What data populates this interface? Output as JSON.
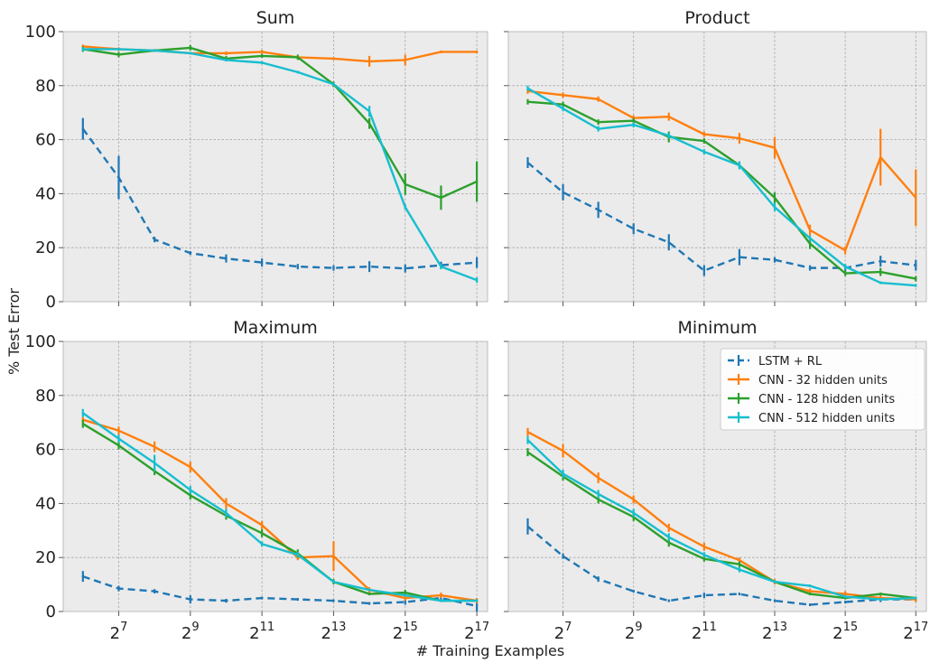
{
  "chart_data": {
    "type": "line",
    "xlabel": "# Training Examples",
    "ylabel": "% Test Error",
    "ylim": [
      0,
      100
    ],
    "yticks": [
      "0",
      "20",
      "40",
      "60",
      "80",
      "100"
    ],
    "x_exponents": [
      6,
      7,
      8,
      9,
      10,
      11,
      12,
      13,
      14,
      15,
      16,
      17
    ],
    "xticks": [
      {
        "base": "2",
        "exp": "7",
        "value": 7
      },
      {
        "base": "2",
        "exp": "9",
        "value": 9
      },
      {
        "base": "2",
        "exp": "11",
        "value": 11
      },
      {
        "base": "2",
        "exp": "13",
        "value": 13
      },
      {
        "base": "2",
        "exp": "15",
        "value": 15
      },
      {
        "base": "2",
        "exp": "17",
        "value": 17
      }
    ],
    "x_scale": "log2",
    "grid": true,
    "legend": {
      "placement": "top-right of Minimum panel",
      "entries": [
        {
          "label": "LSTM + RL",
          "color": "#1f77b4",
          "dashed": true
        },
        {
          "label": "CNN - 32 hidden units",
          "color": "#ff7f0e",
          "dashed": false
        },
        {
          "label": "CNN - 128 hidden units",
          "color": "#2ca02c",
          "dashed": false
        },
        {
          "label": "CNN - 512 hidden units",
          "color": "#17becf",
          "dashed": false
        }
      ]
    },
    "panels": [
      {
        "title": "Sum",
        "series": [
          {
            "name": "LSTM + RL",
            "values": [
              64,
              46,
              23,
              18,
              16,
              14.5,
              13,
              12.5,
              13,
              12.3,
              13.5,
              14.5
            ],
            "errors": [
              4,
              8,
              1,
              0.7,
              1.5,
              1.5,
              1,
              1,
              2,
              1.5,
              1.3,
              2
            ]
          },
          {
            "name": "CNN - 32 hidden units",
            "values": [
              94.5,
              93.5,
              93,
              92,
              92,
              92.5,
              90.5,
              90,
              89,
              89.5,
              92.5,
              92.5
            ],
            "errors": [
              0.7,
              0.7,
              0.5,
              0.5,
              0.7,
              0.7,
              0.5,
              0.5,
              2,
              2,
              0.5,
              0.5
            ]
          },
          {
            "name": "CNN - 128 hidden units",
            "values": [
              93.5,
              91.5,
              93,
              94,
              90,
              91,
              90.5,
              80.5,
              66,
              43.5,
              38.5,
              44.5
            ],
            "errors": [
              1,
              1,
              0.5,
              1,
              1,
              0.7,
              1,
              1,
              2,
              4,
              4.5,
              7.5
            ]
          },
          {
            "name": "CNN - 512 hidden units",
            "values": [
              93.5,
              93.5,
              93,
              92,
              89.5,
              88.5,
              85,
              80.5,
              70.5,
              35,
              13,
              8
            ],
            "errors": [
              0.7,
              0.5,
              0.5,
              0.5,
              0.5,
              0.5,
              0.5,
              0.5,
              2,
              1,
              1,
              1
            ]
          }
        ]
      },
      {
        "title": "Product",
        "series": [
          {
            "name": "LSTM + RL",
            "values": [
              51.5,
              40.5,
              34,
              27,
              22,
              11.5,
              16.5,
              15.5,
              12.5,
              12.5,
              15,
              13.5
            ],
            "errors": [
              2,
              3,
              3,
              2,
              3,
              2,
              3,
              1,
              1,
              1,
              2,
              2
            ]
          },
          {
            "name": "CNN - 32 hidden units",
            "values": [
              78,
              76.5,
              75,
              68,
              68.5,
              62,
              60.5,
              57,
              26.5,
              19,
              53.5,
              38.5
            ],
            "errors": [
              1,
              1,
              1,
              1,
              1.5,
              1,
              2,
              4,
              2,
              1.5,
              10.5,
              10.5
            ]
          },
          {
            "name": "CNN - 128 hidden units",
            "values": [
              74,
              73,
              66.5,
              67,
              61,
              59.5,
              50.5,
              38.5,
              21.5,
              10.5,
              11,
              8.5
            ],
            "errors": [
              1,
              1,
              1,
              1,
              2,
              1,
              1,
              2,
              2,
              1,
              1.5,
              1
            ]
          },
          {
            "name": "CNN - 512 hidden units",
            "values": [
              79,
              71.5,
              64,
              65.5,
              61.5,
              55.5,
              50.5,
              35,
              23.5,
              13,
              7,
              6
            ],
            "errors": [
              1,
              1,
              1,
              1,
              1,
              1,
              1.5,
              1.5,
              1,
              1,
              0.5,
              0.5
            ]
          }
        ]
      },
      {
        "title": "Maximum",
        "series": [
          {
            "name": "LSTM + RL",
            "values": [
              13,
              8.5,
              7.5,
              4.5,
              4,
              5,
              4.5,
              4,
              3,
              3.5,
              5,
              2
            ],
            "errors": [
              2,
              1,
              0.8,
              1.5,
              0.7,
              0.5,
              0.5,
              0.5,
              0.5,
              1,
              1,
              2
            ]
          },
          {
            "name": "CNN - 32 hidden units",
            "values": [
              71,
              67,
              61,
              53.5,
              40,
              32,
              20,
              20.5,
              8,
              5,
              6,
              4
            ],
            "errors": [
              1,
              1.5,
              2,
              2,
              2,
              1.5,
              1,
              5.5,
              1,
              1,
              1,
              1
            ]
          },
          {
            "name": "CNN - 128 hidden units",
            "values": [
              69.5,
              61.5,
              52,
              43,
              35.5,
              29,
              21.5,
              11,
              6.5,
              7,
              4,
              4
            ],
            "errors": [
              1.5,
              1.5,
              1.5,
              1.5,
              1.5,
              1.5,
              1.5,
              1,
              0.5,
              1,
              0.5,
              0.5
            ]
          },
          {
            "name": "CNN - 512 hidden units",
            "values": [
              73.5,
              64,
              55,
              45,
              36.5,
              25,
              21,
              11,
              8,
              6,
              4,
              4
            ],
            "errors": [
              1.5,
              1.5,
              3,
              1.5,
              1.5,
              1,
              1,
              0.5,
              0.5,
              0.5,
              0.5,
              0.5
            ]
          }
        ]
      },
      {
        "title": "Minimum",
        "series": [
          {
            "name": "LSTM + RL",
            "values": [
              31.5,
              20.5,
              12,
              7.5,
              4,
              6,
              6.5,
              4,
              2.5,
              3.5,
              4.5,
              4.5
            ],
            "errors": [
              3,
              1,
              1,
              0.5,
              0.5,
              1,
              0.5,
              0.5,
              0.5,
              0.5,
              1,
              0.5
            ]
          },
          {
            "name": "CNN - 32 hidden units",
            "values": [
              66.5,
              59.5,
              49.5,
              41.5,
              31,
              24,
              19,
              11,
              7.5,
              6.5,
              5,
              4.5
            ],
            "errors": [
              1.5,
              2.5,
              2,
              1.5,
              1.5,
              1.5,
              1,
              1,
              1,
              1,
              1,
              1
            ]
          },
          {
            "name": "CNN - 128 hidden units",
            "values": [
              59,
              50,
              41.5,
              35,
              25.5,
              19.5,
              17.5,
              11,
              6.5,
              5,
              6.5,
              5
            ],
            "errors": [
              1.5,
              1.5,
              1.5,
              1.5,
              1.5,
              1,
              1,
              0.5,
              0.5,
              0.5,
              0.5,
              0.5
            ]
          },
          {
            "name": "CNN - 512 hidden units",
            "values": [
              63.5,
              51,
              43.5,
              36.5,
              27.5,
              21,
              15.5,
              11,
              9.5,
              5.5,
              4.5,
              5
            ],
            "errors": [
              1.5,
              1.5,
              1.5,
              1.5,
              1.5,
              1,
              1,
              0.5,
              0.5,
              0.5,
              0.5,
              0.5
            ]
          }
        ]
      }
    ]
  }
}
